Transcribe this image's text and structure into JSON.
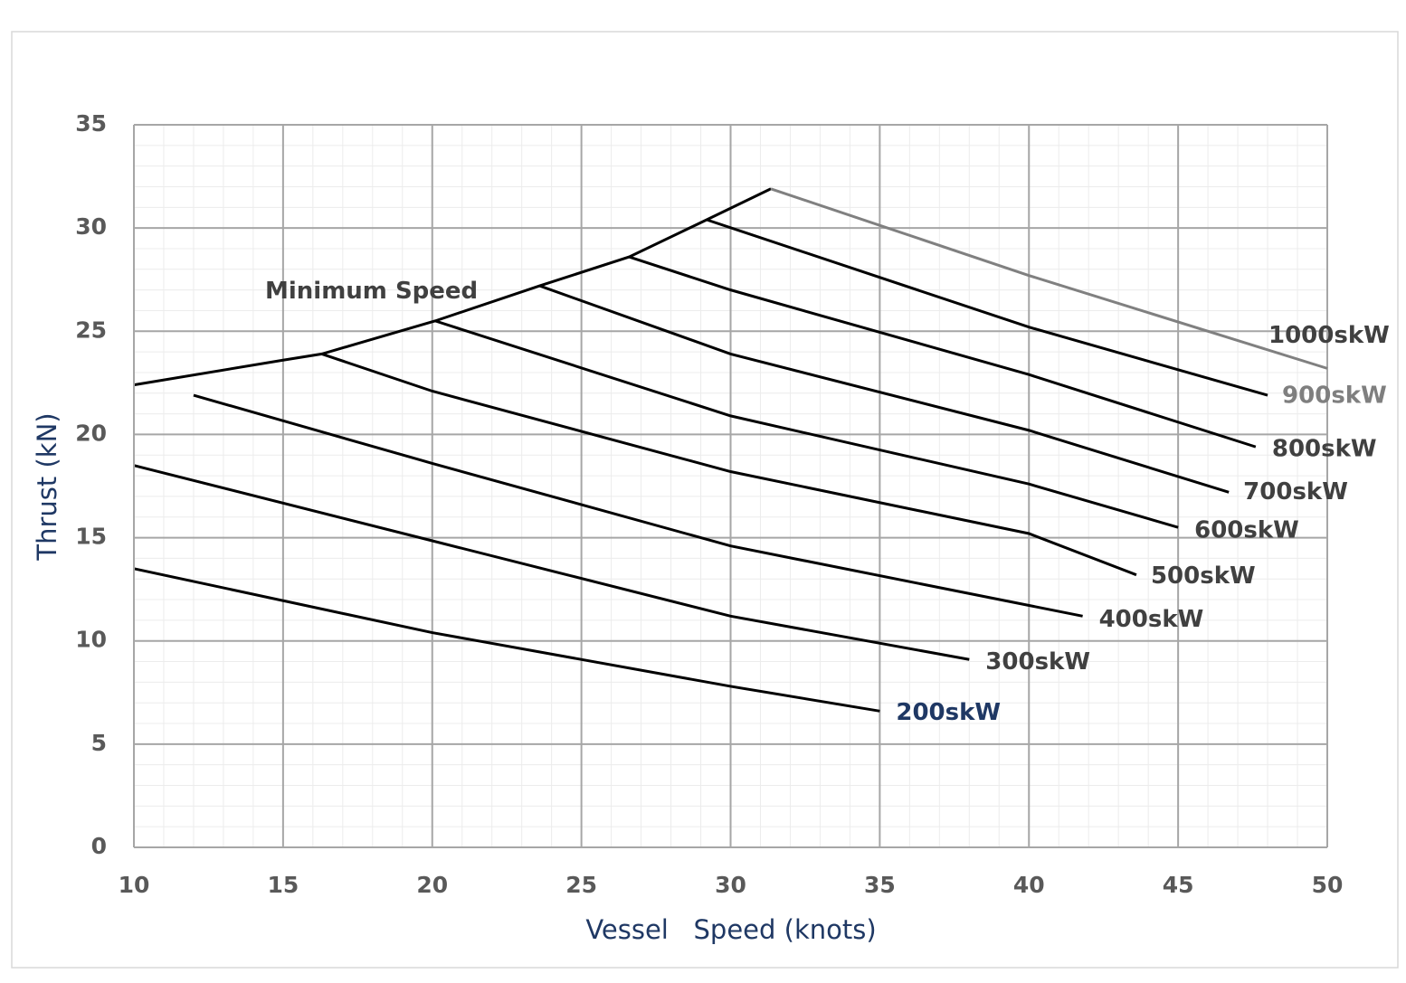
{
  "chart_data": {
    "type": "line",
    "x_label": "Vessel   Speed (knots)",
    "y_label": "Thrust (kN)",
    "xlim": [
      10,
      50
    ],
    "xticks": [
      10,
      15,
      20,
      25,
      30,
      35,
      40,
      45,
      50
    ],
    "ylim": [
      0,
      35
    ],
    "yticks": [
      0,
      5,
      10,
      15,
      20,
      25,
      30,
      35
    ],
    "grid": true,
    "series": [
      {
        "name": "Minimum Speed",
        "color": "#000000",
        "label_color": "#404040",
        "x": [
          10,
          15,
          16.3,
          20.1,
          23.6,
          26.6,
          29.2,
          31.35
        ],
        "values": [
          22.4,
          23.6,
          23.9,
          25.5,
          27.2,
          28.6,
          30.4,
          31.9
        ]
      },
      {
        "name": "200skW",
        "color": "#000000",
        "label_color": "#1f3864",
        "x": [
          10,
          20,
          30,
          35
        ],
        "values": [
          13.5,
          10.4,
          7.8,
          6.6
        ]
      },
      {
        "name": "300skW",
        "color": "#000000",
        "label_color": "#404040",
        "x": [
          10,
          20,
          30,
          38
        ],
        "values": [
          18.5,
          14.85,
          11.2,
          9.1
        ]
      },
      {
        "name": "400skW",
        "color": "#000000",
        "label_color": "#404040",
        "x": [
          12,
          20,
          30,
          41.8
        ],
        "values": [
          21.9,
          18.6,
          14.6,
          11.2
        ]
      },
      {
        "name": "500skW",
        "color": "#000000",
        "label_color": "#404040",
        "x": [
          16.3,
          20,
          30,
          40,
          43.6
        ],
        "values": [
          23.9,
          22.1,
          18.2,
          15.2,
          13.2
        ]
      },
      {
        "name": "600skW",
        "color": "#000000",
        "label_color": "#404040",
        "x": [
          20.1,
          30,
          40,
          45
        ],
        "values": [
          25.5,
          20.9,
          17.6,
          15.5
        ]
      },
      {
        "name": "700skW",
        "color": "#000000",
        "label_color": "#404040",
        "x": [
          23.6,
          30,
          40,
          46.7
        ],
        "values": [
          27.2,
          23.9,
          20.2,
          17.2
        ]
      },
      {
        "name": "800skW",
        "color": "#000000",
        "label_color": "#404040",
        "x": [
          26.6,
          30,
          40,
          47.6
        ],
        "values": [
          28.6,
          27.0,
          22.9,
          19.4
        ]
      },
      {
        "name": "900skW",
        "color": "#000000",
        "label_color": "#7f7f7f",
        "x": [
          29.2,
          40,
          48
        ],
        "values": [
          30.4,
          25.2,
          21.9
        ]
      },
      {
        "name": "1000skW",
        "color": "#808080",
        "label_color": "#404040",
        "x": [
          31.35,
          40,
          50
        ],
        "values": [
          31.9,
          27.7,
          23.2
        ]
      }
    ]
  }
}
